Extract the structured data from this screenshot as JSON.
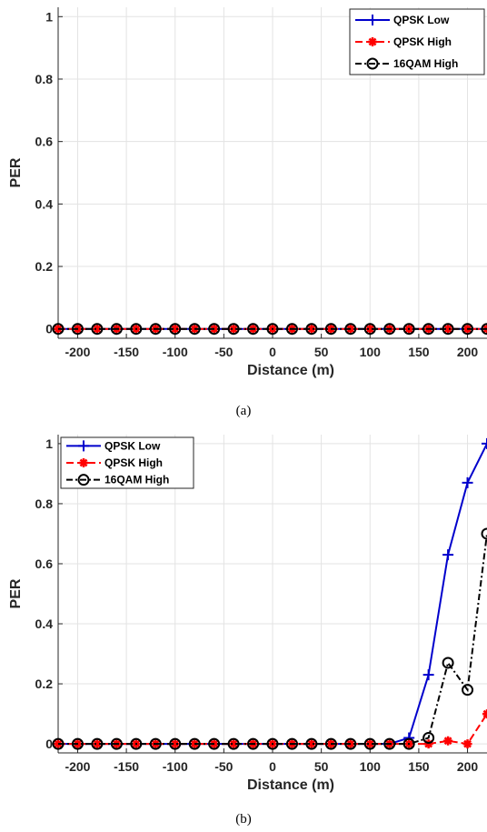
{
  "chart_data": [
    {
      "type": "line",
      "caption": "(a)",
      "xlabel": "Distance (m)",
      "ylabel": "PER",
      "xlim": [
        -220,
        220
      ],
      "ylim": [
        -0.03,
        1.03
      ],
      "xticks": [
        -200,
        -150,
        -100,
        -50,
        0,
        50,
        100,
        150,
        200
      ],
      "yticks": [
        0,
        0.2,
        0.4,
        0.6,
        0.8,
        1
      ],
      "grid": true,
      "legend_position": "top-right",
      "x": [
        -220,
        -200,
        -180,
        -160,
        -140,
        -120,
        -100,
        -80,
        -60,
        -40,
        -20,
        0,
        20,
        40,
        60,
        80,
        100,
        120,
        140,
        160,
        180,
        200,
        220
      ],
      "series": [
        {
          "name": "QPSK Low",
          "color": "#0000cc",
          "marker": "plus",
          "line": "solid",
          "values": [
            0,
            0,
            0,
            0,
            0,
            0,
            0,
            0,
            0,
            0,
            0,
            0,
            0,
            0,
            0,
            0,
            0,
            0,
            0,
            0,
            0,
            0,
            0
          ]
        },
        {
          "name": "QPSK High",
          "color": "#ff0000",
          "marker": "star",
          "line": "dashed",
          "values": [
            0,
            0,
            0,
            0,
            0,
            0,
            0,
            0,
            0,
            0,
            0,
            0,
            0,
            0,
            0,
            0,
            0,
            0,
            0,
            0,
            0,
            0,
            0
          ]
        },
        {
          "name": "16QAM High",
          "color": "#000000",
          "marker": "circle",
          "line": "dashdot",
          "values": [
            0,
            0,
            0,
            0,
            0,
            0,
            0,
            0,
            0,
            0,
            0,
            0,
            0,
            0,
            0,
            0,
            0,
            0,
            0,
            0,
            0,
            0,
            0
          ]
        }
      ]
    },
    {
      "type": "line",
      "caption": "(b)",
      "xlabel": "Distance (m)",
      "ylabel": "PER",
      "xlim": [
        -220,
        220
      ],
      "ylim": [
        -0.03,
        1.03
      ],
      "xticks": [
        -200,
        -150,
        -100,
        -50,
        0,
        50,
        100,
        150,
        200
      ],
      "yticks": [
        0,
        0.2,
        0.4,
        0.6,
        0.8,
        1
      ],
      "grid": true,
      "legend_position": "top-left",
      "x": [
        -220,
        -200,
        -180,
        -160,
        -140,
        -120,
        -100,
        -80,
        -60,
        -40,
        -20,
        0,
        20,
        40,
        60,
        80,
        100,
        120,
        140,
        160,
        180,
        200,
        220
      ],
      "series": [
        {
          "name": "QPSK Low",
          "color": "#0000cc",
          "marker": "plus",
          "line": "solid",
          "values": [
            0,
            0,
            0,
            0,
            0,
            0,
            0,
            0,
            0,
            0,
            0,
            0,
            0,
            0,
            0,
            0,
            0,
            0,
            0.02,
            0.23,
            0.63,
            0.87,
            1.0
          ]
        },
        {
          "name": "QPSK High",
          "color": "#ff0000",
          "marker": "star",
          "line": "dashed",
          "values": [
            0,
            0,
            0,
            0,
            0,
            0,
            0,
            0,
            0,
            0,
            0,
            0,
            0,
            0,
            0,
            0,
            0,
            0,
            0,
            0,
            0.01,
            0,
            0.1
          ]
        },
        {
          "name": "16QAM High",
          "color": "#000000",
          "marker": "circle",
          "line": "dashdot",
          "values": [
            0,
            0,
            0,
            0,
            0,
            0,
            0,
            0,
            0,
            0,
            0,
            0,
            0,
            0,
            0,
            0,
            0,
            0,
            0,
            0.02,
            0.27,
            0.18,
            0.7
          ]
        }
      ]
    }
  ]
}
